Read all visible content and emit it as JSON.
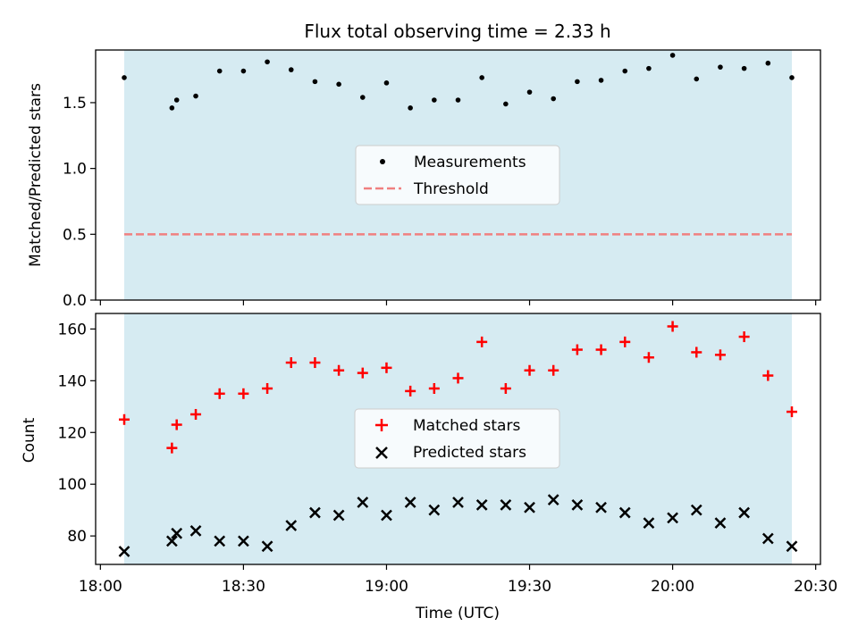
{
  "chart_data": [
    {
      "type": "scatter",
      "title": "Flux total observing time = 2.33 h",
      "ylabel": "Matched/Predicted stars",
      "ylim": [
        0,
        1.9
      ],
      "yticks": [
        0.0,
        0.5,
        1.0,
        1.5
      ],
      "ytick_labels": [
        "0.0",
        "0.5",
        "1.0",
        "1.5"
      ],
      "x": [
        "18:05",
        "18:15",
        "18:16",
        "18:20",
        "18:25",
        "18:30",
        "18:35",
        "18:40",
        "18:45",
        "18:50",
        "18:55",
        "19:00",
        "19:05",
        "19:10",
        "19:15",
        "19:20",
        "19:25",
        "19:30",
        "19:35",
        "19:40",
        "19:45",
        "19:50",
        "19:55",
        "20:00",
        "20:05",
        "20:10",
        "20:15",
        "20:20",
        "20:25"
      ],
      "series": [
        {
          "name": "Measurements",
          "kind": "scatter",
          "marker": "dot",
          "color": "#000000",
          "values": [
            1.69,
            1.46,
            1.52,
            1.55,
            1.74,
            1.74,
            1.81,
            1.75,
            1.66,
            1.64,
            1.54,
            1.65,
            1.46,
            1.52,
            1.52,
            1.69,
            1.49,
            1.58,
            1.53,
            1.66,
            1.67,
            1.74,
            1.76,
            1.86,
            1.68,
            1.77,
            1.76,
            1.8,
            1.69
          ]
        },
        {
          "name": "Threshold",
          "kind": "line",
          "style": "dashed",
          "color": "#f08080",
          "x": [
            "18:05",
            "20:25"
          ],
          "values": [
            0.5,
            0.5
          ]
        }
      ],
      "shaded_span": [
        "18:05",
        "20:25"
      ],
      "shade_color": "#add8e6",
      "legend_position": "center"
    },
    {
      "type": "scatter",
      "xlabel": "Time (UTC)",
      "ylabel": "Count",
      "xlim": [
        "17:59",
        "20:31"
      ],
      "xticks": [
        "18:00",
        "18:30",
        "19:00",
        "19:30",
        "20:00",
        "20:30"
      ],
      "ylim": [
        69,
        166
      ],
      "yticks": [
        80,
        100,
        120,
        140,
        160
      ],
      "x": [
        "18:05",
        "18:15",
        "18:16",
        "18:20",
        "18:25",
        "18:30",
        "18:35",
        "18:40",
        "18:45",
        "18:50",
        "18:55",
        "19:00",
        "19:05",
        "19:10",
        "19:15",
        "19:20",
        "19:25",
        "19:30",
        "19:35",
        "19:40",
        "19:45",
        "19:50",
        "19:55",
        "20:00",
        "20:05",
        "20:10",
        "20:15",
        "20:20",
        "20:25"
      ],
      "series": [
        {
          "name": "Matched stars",
          "marker": "plus",
          "color": "#ff0000",
          "values": [
            125,
            114,
            123,
            127,
            135,
            135,
            137,
            147,
            147,
            144,
            143,
            145,
            136,
            137,
            141,
            155,
            137,
            144,
            144,
            152,
            152,
            155,
            149,
            161,
            151,
            150,
            157,
            142,
            128
          ]
        },
        {
          "name": "Predicted stars",
          "marker": "x",
          "color": "#000000",
          "values": [
            74,
            78,
            81,
            82,
            78,
            78,
            76,
            84,
            89,
            88,
            93,
            88,
            93,
            90,
            93,
            92,
            92,
            91,
            94,
            92,
            91,
            89,
            85,
            87,
            90,
            85,
            89,
            79,
            76
          ]
        }
      ],
      "shaded_span": [
        "18:05",
        "20:25"
      ],
      "shade_color": "#add8e6",
      "legend_position": "center"
    }
  ]
}
